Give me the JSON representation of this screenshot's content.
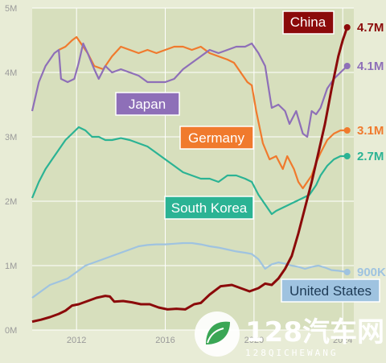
{
  "chart_data": {
    "type": "line",
    "y_ticks": [
      "0M",
      "1M",
      "2M",
      "3M",
      "4M",
      "5M"
    ],
    "x_ticks": [
      "2012",
      "2016",
      "2020",
      "2024"
    ],
    "ylim": [
      0,
      5
    ],
    "xlim": [
      2010,
      2024.5
    ],
    "grid": true,
    "series": [
      {
        "name": "China",
        "color": "#8b0a0a",
        "end_label": "4.7M",
        "points": [
          [
            2010.0,
            0.13
          ],
          [
            2010.4,
            0.16
          ],
          [
            2010.8,
            0.2
          ],
          [
            2011.2,
            0.25
          ],
          [
            2011.5,
            0.3
          ],
          [
            2011.8,
            0.38
          ],
          [
            2012.1,
            0.4
          ],
          [
            2012.5,
            0.45
          ],
          [
            2012.9,
            0.5
          ],
          [
            2013.3,
            0.53
          ],
          [
            2013.5,
            0.52
          ],
          [
            2013.7,
            0.44
          ],
          [
            2014.1,
            0.45
          ],
          [
            2014.5,
            0.43
          ],
          [
            2014.9,
            0.4
          ],
          [
            2015.3,
            0.4
          ],
          [
            2015.7,
            0.35
          ],
          [
            2016.1,
            0.32
          ],
          [
            2016.5,
            0.33
          ],
          [
            2016.9,
            0.32
          ],
          [
            2017.3,
            0.4
          ],
          [
            2017.6,
            0.42
          ],
          [
            2018.0,
            0.55
          ],
          [
            2018.5,
            0.68
          ],
          [
            2019.0,
            0.7
          ],
          [
            2019.4,
            0.65
          ],
          [
            2019.8,
            0.6
          ],
          [
            2020.2,
            0.65
          ],
          [
            2020.5,
            0.72
          ],
          [
            2020.8,
            0.7
          ],
          [
            2021.1,
            0.8
          ],
          [
            2021.4,
            0.95
          ],
          [
            2021.7,
            1.15
          ],
          [
            2022.0,
            1.5
          ],
          [
            2022.3,
            1.9
          ],
          [
            2022.6,
            2.3
          ],
          [
            2022.9,
            2.75
          ],
          [
            2023.2,
            3.2
          ],
          [
            2023.5,
            3.75
          ],
          [
            2023.8,
            4.25
          ],
          [
            2024.0,
            4.5
          ],
          [
            2024.2,
            4.7
          ]
        ]
      },
      {
        "name": "Japan",
        "color": "#8e6fb8",
        "end_label": "4.1M",
        "points": [
          [
            2010.0,
            3.4
          ],
          [
            2010.3,
            3.85
          ],
          [
            2010.6,
            4.1
          ],
          [
            2011.0,
            4.3
          ],
          [
            2011.2,
            4.35
          ],
          [
            2011.3,
            3.9
          ],
          [
            2011.6,
            3.85
          ],
          [
            2011.9,
            3.9
          ],
          [
            2012.1,
            4.15
          ],
          [
            2012.3,
            4.45
          ],
          [
            2012.5,
            4.3
          ],
          [
            2012.8,
            4.05
          ],
          [
            2013.0,
            3.9
          ],
          [
            2013.3,
            4.1
          ],
          [
            2013.6,
            4.0
          ],
          [
            2014.0,
            4.05
          ],
          [
            2014.4,
            4.0
          ],
          [
            2014.8,
            3.95
          ],
          [
            2015.2,
            3.85
          ],
          [
            2015.6,
            3.85
          ],
          [
            2016.0,
            3.85
          ],
          [
            2016.4,
            3.9
          ],
          [
            2016.8,
            4.05
          ],
          [
            2017.2,
            4.15
          ],
          [
            2017.6,
            4.25
          ],
          [
            2018.0,
            4.35
          ],
          [
            2018.4,
            4.3
          ],
          [
            2018.8,
            4.35
          ],
          [
            2019.2,
            4.4
          ],
          [
            2019.6,
            4.4
          ],
          [
            2019.9,
            4.45
          ],
          [
            2020.2,
            4.3
          ],
          [
            2020.5,
            4.1
          ],
          [
            2020.8,
            3.45
          ],
          [
            2021.1,
            3.5
          ],
          [
            2021.4,
            3.4
          ],
          [
            2021.6,
            3.2
          ],
          [
            2021.9,
            3.4
          ],
          [
            2022.2,
            3.05
          ],
          [
            2022.4,
            3.0
          ],
          [
            2022.6,
            3.4
          ],
          [
            2022.8,
            3.35
          ],
          [
            2023.0,
            3.45
          ],
          [
            2023.3,
            3.75
          ],
          [
            2023.6,
            3.9
          ],
          [
            2023.9,
            4.0
          ],
          [
            2024.2,
            4.1
          ]
        ]
      },
      {
        "name": "Germany",
        "color": "#f07a2d",
        "end_label": "3.1M",
        "points": [
          [
            2011.2,
            4.35
          ],
          [
            2011.5,
            4.4
          ],
          [
            2011.8,
            4.5
          ],
          [
            2012.0,
            4.55
          ],
          [
            2012.2,
            4.45
          ],
          [
            2012.5,
            4.3
          ],
          [
            2012.8,
            4.1
          ],
          [
            2013.2,
            4.05
          ],
          [
            2013.6,
            4.25
          ],
          [
            2014.0,
            4.4
          ],
          [
            2014.4,
            4.35
          ],
          [
            2014.8,
            4.3
          ],
          [
            2015.2,
            4.35
          ],
          [
            2015.6,
            4.3
          ],
          [
            2016.0,
            4.35
          ],
          [
            2016.4,
            4.4
          ],
          [
            2016.8,
            4.4
          ],
          [
            2017.2,
            4.35
          ],
          [
            2017.6,
            4.4
          ],
          [
            2018.0,
            4.3
          ],
          [
            2018.4,
            4.25
          ],
          [
            2018.8,
            4.2
          ],
          [
            2019.1,
            4.15
          ],
          [
            2019.4,
            4.0
          ],
          [
            2019.7,
            3.85
          ],
          [
            2019.9,
            3.8
          ],
          [
            2020.1,
            3.4
          ],
          [
            2020.4,
            2.9
          ],
          [
            2020.7,
            2.65
          ],
          [
            2021.0,
            2.7
          ],
          [
            2021.3,
            2.5
          ],
          [
            2021.5,
            2.7
          ],
          [
            2021.8,
            2.5
          ],
          [
            2022.0,
            2.3
          ],
          [
            2022.2,
            2.2
          ],
          [
            2022.4,
            2.3
          ],
          [
            2022.6,
            2.4
          ],
          [
            2022.8,
            2.6
          ],
          [
            2023.0,
            2.75
          ],
          [
            2023.3,
            2.95
          ],
          [
            2023.6,
            3.05
          ],
          [
            2023.9,
            3.1
          ],
          [
            2024.2,
            3.1
          ]
        ]
      },
      {
        "name": "South Korea",
        "color": "#2bb394",
        "end_label": "2.7M",
        "points": [
          [
            2010.0,
            2.05
          ],
          [
            2010.3,
            2.3
          ],
          [
            2010.6,
            2.5
          ],
          [
            2010.9,
            2.65
          ],
          [
            2011.2,
            2.8
          ],
          [
            2011.5,
            2.95
          ],
          [
            2011.8,
            3.05
          ],
          [
            2012.1,
            3.15
          ],
          [
            2012.4,
            3.1
          ],
          [
            2012.7,
            3.0
          ],
          [
            2013.0,
            3.0
          ],
          [
            2013.3,
            2.95
          ],
          [
            2013.6,
            2.95
          ],
          [
            2014.0,
            2.98
          ],
          [
            2014.4,
            2.95
          ],
          [
            2014.8,
            2.9
          ],
          [
            2015.2,
            2.85
          ],
          [
            2015.6,
            2.75
          ],
          [
            2016.0,
            2.65
          ],
          [
            2016.4,
            2.55
          ],
          [
            2016.8,
            2.45
          ],
          [
            2017.2,
            2.4
          ],
          [
            2017.6,
            2.35
          ],
          [
            2018.0,
            2.35
          ],
          [
            2018.4,
            2.3
          ],
          [
            2018.8,
            2.4
          ],
          [
            2019.2,
            2.4
          ],
          [
            2019.6,
            2.35
          ],
          [
            2019.9,
            2.3
          ],
          [
            2020.2,
            2.1
          ],
          [
            2020.5,
            1.95
          ],
          [
            2020.8,
            1.8
          ],
          [
            2021.0,
            1.85
          ],
          [
            2021.3,
            1.9
          ],
          [
            2021.6,
            1.95
          ],
          [
            2021.9,
            2.0
          ],
          [
            2022.2,
            2.05
          ],
          [
            2022.5,
            2.1
          ],
          [
            2022.8,
            2.25
          ],
          [
            2023.0,
            2.4
          ],
          [
            2023.3,
            2.55
          ],
          [
            2023.6,
            2.65
          ],
          [
            2023.9,
            2.7
          ],
          [
            2024.2,
            2.7
          ]
        ]
      },
      {
        "name": "United States",
        "color": "#9fc3e0",
        "end_label": "900K",
        "points": [
          [
            2010.0,
            0.5
          ],
          [
            2010.4,
            0.6
          ],
          [
            2010.8,
            0.7
          ],
          [
            2011.2,
            0.75
          ],
          [
            2011.6,
            0.8
          ],
          [
            2012.0,
            0.9
          ],
          [
            2012.4,
            1.0
          ],
          [
            2012.8,
            1.05
          ],
          [
            2013.2,
            1.1
          ],
          [
            2013.6,
            1.15
          ],
          [
            2014.0,
            1.2
          ],
          [
            2014.4,
            1.25
          ],
          [
            2014.8,
            1.3
          ],
          [
            2015.2,
            1.32
          ],
          [
            2015.6,
            1.33
          ],
          [
            2016.0,
            1.33
          ],
          [
            2016.4,
            1.34
          ],
          [
            2016.8,
            1.35
          ],
          [
            2017.2,
            1.35
          ],
          [
            2017.6,
            1.33
          ],
          [
            2018.0,
            1.3
          ],
          [
            2018.4,
            1.28
          ],
          [
            2018.8,
            1.25
          ],
          [
            2019.2,
            1.22
          ],
          [
            2019.6,
            1.2
          ],
          [
            2019.9,
            1.18
          ],
          [
            2020.2,
            1.1
          ],
          [
            2020.5,
            0.95
          ],
          [
            2020.8,
            1.02
          ],
          [
            2021.1,
            1.05
          ],
          [
            2021.4,
            1.03
          ],
          [
            2021.7,
            1.0
          ],
          [
            2022.0,
            0.98
          ],
          [
            2022.3,
            0.95
          ],
          [
            2022.6,
            0.98
          ],
          [
            2022.9,
            1.0
          ],
          [
            2023.2,
            0.97
          ],
          [
            2023.5,
            0.93
          ],
          [
            2023.8,
            0.92
          ],
          [
            2024.2,
            0.9
          ]
        ]
      }
    ],
    "labels": {
      "china": "China",
      "japan": "Japan",
      "germany": "Germany",
      "south_korea": "South Korea",
      "united_states": "United States"
    }
  },
  "watermark": {
    "text": "128汽车网",
    "sub": "128QICHEWANG"
  },
  "colors": {
    "background": "#e8ecd6",
    "plot_area": "#d7dfbd",
    "grid": "#ffffff"
  }
}
